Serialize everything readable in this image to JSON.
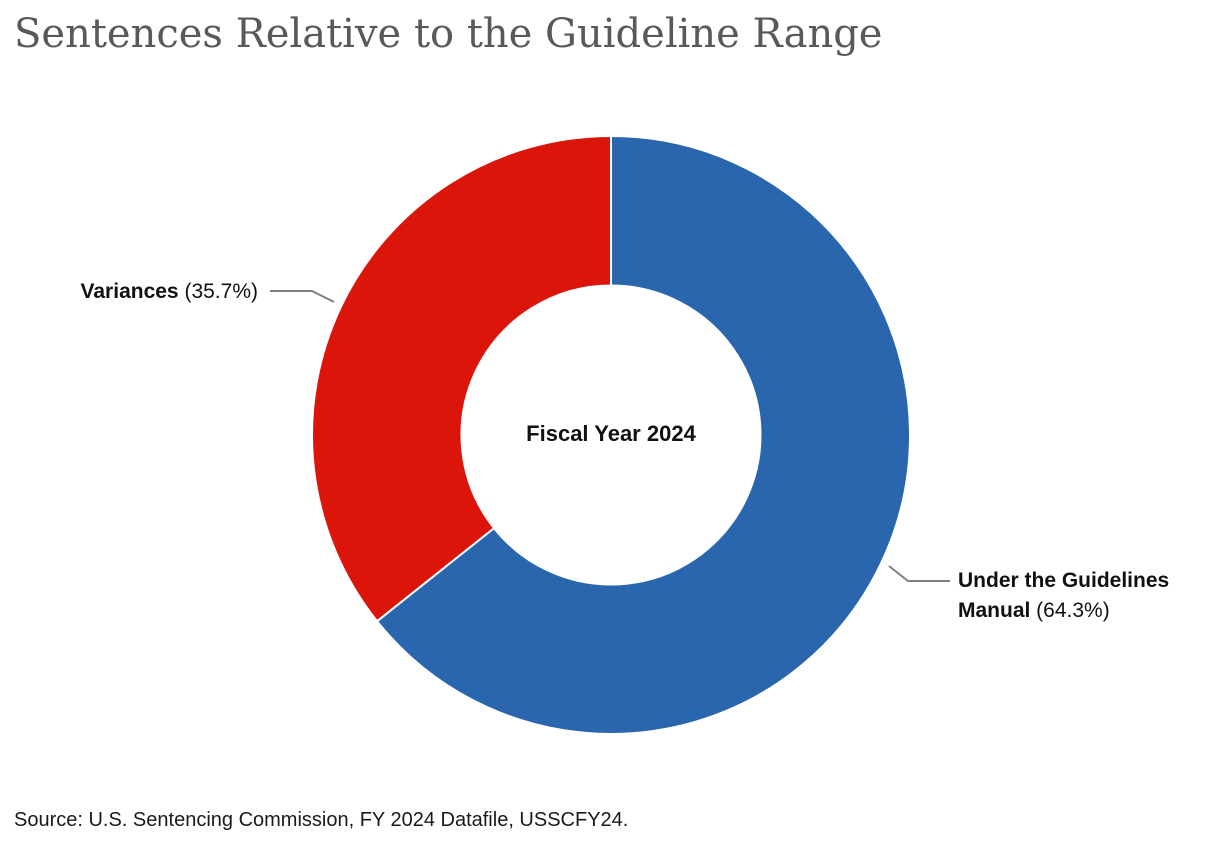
{
  "title": "Sentences Relative to the Guideline Range",
  "chart_data": {
    "type": "pie",
    "subtype": "donut",
    "title": "Sentences Relative to the Guideline Range",
    "center_label": "Fiscal Year 2024",
    "categories": [
      "Under the Guidelines Manual",
      "Variances"
    ],
    "values": [
      64.3,
      35.7
    ],
    "slices": [
      {
        "label": "Under the Guidelines Manual",
        "value": 64.3,
        "color": "#2A66AD"
      },
      {
        "label": "Variances",
        "value": 35.7,
        "color": "#DC150B"
      }
    ],
    "start_angle": "12-o-clock",
    "direction": "clockwise",
    "inner_radius_ratio": 0.5,
    "legend_position": "callout-labels",
    "slice_separator_color": "#ffffff"
  },
  "callouts": {
    "left": {
      "name": "Variances",
      "pct": " (35.7%)"
    },
    "right": {
      "line1": "Under the Guidelines",
      "line2_name": "Manual",
      "line2_pct": " (64.3%)"
    }
  },
  "center_label": "Fiscal Year 2024",
  "source": "Source: U.S. Sentencing Commission, FY 2024 Datafile, USSCFY24.",
  "colors": {
    "blue_slice": "#2A66AD",
    "red_slice": "#DC150B",
    "leader_line": "#808080",
    "title_text": "#595959",
    "body_text": "#1a1a1a"
  }
}
